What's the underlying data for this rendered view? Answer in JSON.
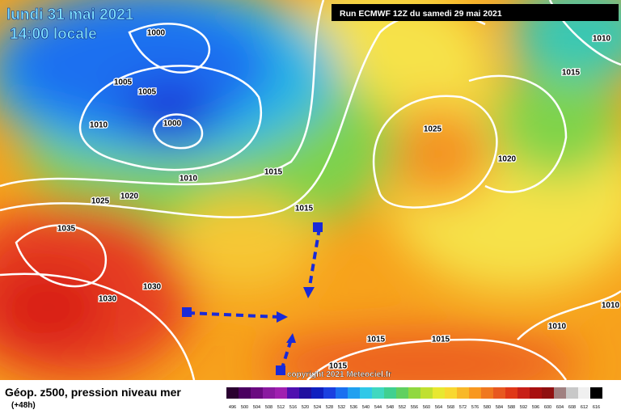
{
  "header": {
    "date": "lundi 31 mai 2021",
    "time": "14:00 locale",
    "run": "Run ECMWF 12Z du samedi 29 mai 2021"
  },
  "isobars": {
    "labels": [
      "1000",
      "1005",
      "1005",
      "1010",
      "1000",
      "1010",
      "1015",
      "1020",
      "1025",
      "1035",
      "1030",
      "1030",
      "1015",
      "1025",
      "1020",
      "1015",
      "1010",
      "1010",
      "1010",
      "1015",
      "1015",
      "1015"
    ]
  },
  "footer": {
    "title": "Géop. z500, pression niveau mer",
    "lead": "(+48h)",
    "copyright": "copyright 2021 Meteociel.fr"
  },
  "scale": {
    "labels": [
      "496",
      "500",
      "504",
      "508",
      "512",
      "516",
      "520",
      "524",
      "528",
      "532",
      "536",
      "540",
      "544",
      "548",
      "552",
      "556",
      "560",
      "564",
      "568",
      "572",
      "576",
      "580",
      "584",
      "588",
      "592",
      "596",
      "600",
      "604",
      "608",
      "612",
      "616"
    ]
  }
}
